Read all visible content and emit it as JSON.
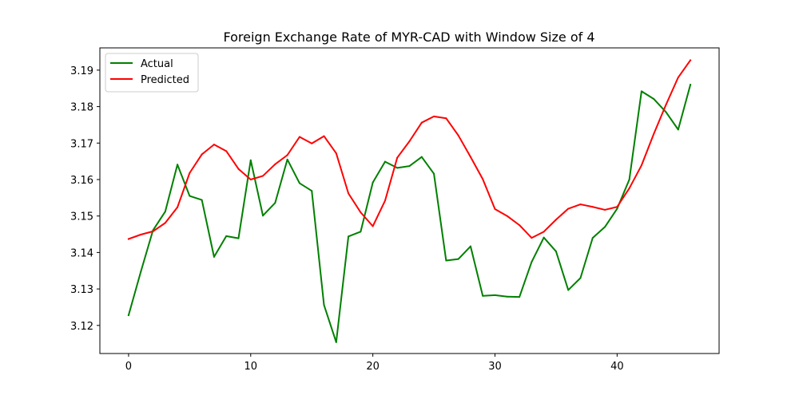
{
  "chart_data": {
    "type": "line",
    "title": "Foreign Exchange Rate of MYR-CAD with Window Size of 4",
    "xlabel": "",
    "ylabel": "",
    "xlim": [
      -2.35,
      48.35
    ],
    "ylim": [
      3.1123,
      3.1961
    ],
    "x_ticks": [
      0,
      10,
      20,
      30,
      40
    ],
    "y_ticks": [
      3.12,
      3.13,
      3.14,
      3.15,
      3.16,
      3.17,
      3.18,
      3.19
    ],
    "legend_position": "top-left",
    "grid": false,
    "x": [
      0,
      1,
      2,
      3,
      4,
      5,
      6,
      7,
      8,
      9,
      10,
      11,
      12,
      13,
      14,
      15,
      16,
      17,
      18,
      19,
      20,
      21,
      22,
      23,
      24,
      25,
      26,
      27,
      28,
      29,
      30,
      31,
      32,
      33,
      34,
      35,
      36,
      37,
      38,
      39,
      40,
      41,
      42,
      43,
      44,
      45,
      46
    ],
    "series": [
      {
        "name": "Actual",
        "color": "#008000",
        "values": [
          3.1228,
          3.1347,
          3.1461,
          3.1512,
          3.1641,
          3.1555,
          3.1544,
          3.1388,
          3.1445,
          3.1439,
          3.1653,
          3.1501,
          3.1536,
          3.1655,
          3.159,
          3.1569,
          3.1256,
          3.1154,
          3.1444,
          3.1457,
          3.1592,
          3.1649,
          3.1632,
          3.1637,
          3.1662,
          3.1616,
          3.1378,
          3.1382,
          3.1417,
          3.1281,
          3.1283,
          3.1279,
          3.1278,
          3.1374,
          3.1441,
          3.1403,
          3.1297,
          3.133,
          3.144,
          3.147,
          3.152,
          3.16,
          3.1842,
          3.1821,
          3.1785,
          3.1737,
          3.186
        ]
      },
      {
        "name": "Predicted",
        "color": "#ff0000",
        "values": [
          3.1437,
          3.1449,
          3.1458,
          3.1481,
          3.1524,
          3.1618,
          3.1669,
          3.1696,
          3.1678,
          3.1629,
          3.16,
          3.161,
          3.1642,
          3.1667,
          3.1717,
          3.1699,
          3.1719,
          3.1672,
          3.1562,
          3.151,
          3.1472,
          3.1542,
          3.166,
          3.1705,
          3.1756,
          3.1773,
          3.1768,
          3.1721,
          3.1662,
          3.1601,
          3.1519,
          3.15,
          3.1475,
          3.144,
          3.1457,
          3.149,
          3.152,
          3.1532,
          3.1525,
          3.1517,
          3.1525,
          3.1576,
          3.1639,
          3.1725,
          3.1805,
          3.188,
          3.1927
        ]
      }
    ]
  }
}
